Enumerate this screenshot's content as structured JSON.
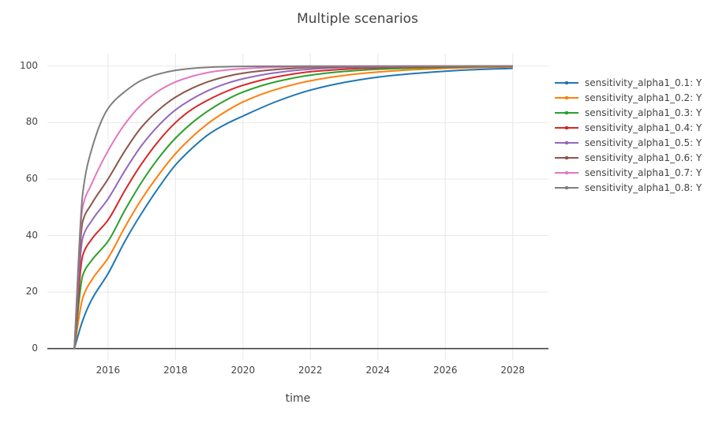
{
  "title": "Multiple scenarios",
  "x_axis": {
    "title": "time",
    "tick_labels": [
      "2016",
      "2018",
      "2020",
      "2022",
      "2024",
      "2026",
      "2028"
    ],
    "tick_values": [
      2016,
      2018,
      2020,
      2022,
      2024,
      2026,
      2028
    ]
  },
  "y_axis": {
    "tick_labels": [
      "0",
      "20",
      "40",
      "60",
      "80",
      "100"
    ],
    "tick_values": [
      0,
      20,
      40,
      60,
      80,
      100
    ]
  },
  "colors": {
    "grid": "#e8e8e8",
    "zero_line": "#444444",
    "text": "#444444",
    "background": "#ffffff"
  },
  "chart_data": {
    "type": "line",
    "title": "Multiple scenarios",
    "xlabel": "time",
    "ylabel": "",
    "xlim": [
      2014.2,
      2029.06
    ],
    "ylim": [
      -4,
      104.4
    ],
    "grid": true,
    "legend_position": "right",
    "x": [
      2015,
      2015.25,
      2015.5,
      2016,
      2016.5,
      2017,
      2017.5,
      2018,
      2018.5,
      2019,
      2019.5,
      2020,
      2021,
      2022,
      2023,
      2024,
      2025,
      2026,
      2027,
      2028
    ],
    "series": [
      {
        "name": "sensitivity_alpha1_0.1: Y",
        "color": "#1f77b4",
        "values": [
          0,
          10,
          17,
          26.5,
          38,
          48,
          57,
          65,
          71,
          76,
          79.5,
          82.3,
          87.5,
          91.5,
          94.2,
          96.1,
          97.3,
          98.2,
          98.8,
          99.2
        ]
      },
      {
        "name": "sensitivity_alpha1_0.2: Y",
        "color": "#ff7f0e",
        "values": [
          0,
          18,
          24,
          32,
          43,
          53,
          61.5,
          69,
          75,
          80,
          84,
          87.3,
          91.8,
          94.8,
          96.7,
          97.9,
          98.7,
          99.2,
          99.5,
          99.7
        ]
      },
      {
        "name": "sensitivity_alpha1_0.3: Y",
        "color": "#2ca02c",
        "values": [
          0,
          26,
          31,
          38,
          49,
          59,
          67.5,
          74.5,
          80,
          84.4,
          88,
          90.8,
          94.5,
          96.8,
          98.1,
          98.9,
          99.3,
          99.6,
          99.8,
          99.9
        ]
      },
      {
        "name": "sensitivity_alpha1_0.4: Y",
        "color": "#d62728",
        "values": [
          0,
          33,
          38.5,
          45.5,
          56,
          65.5,
          73.5,
          80,
          84.8,
          88.2,
          91,
          93.2,
          96.2,
          98,
          98.9,
          99.4,
          99.7,
          99.8,
          99.9,
          99.9
        ]
      },
      {
        "name": "sensitivity_alpha1_0.5: Y",
        "color": "#9467bd",
        "values": [
          0,
          39.3,
          45,
          53,
          63,
          72,
          79,
          84.5,
          88.4,
          91.5,
          93.8,
          95.5,
          97.7,
          98.9,
          99.5,
          99.7,
          99.85,
          99.9,
          99.95,
          99.98
        ]
      },
      {
        "name": "sensitivity_alpha1_0.6: Y",
        "color": "#8c564b",
        "values": [
          0,
          45.1,
          51,
          60,
          70,
          78.5,
          84.5,
          89,
          92.2,
          94.6,
          96.3,
          97.5,
          98.8,
          99.5,
          99.75,
          99.9,
          99.94,
          99.97,
          99.98,
          99.99
        ]
      },
      {
        "name": "sensitivity_alpha1_0.7: Y",
        "color": "#e377c2",
        "values": [
          0,
          50.3,
          58,
          70,
          79.5,
          86.5,
          91.2,
          94.4,
          96.4,
          97.8,
          98.6,
          99.1,
          99.6,
          99.85,
          99.94,
          99.97,
          99.99,
          99.99,
          100,
          100
        ]
      },
      {
        "name": "sensitivity_alpha1_0.8: Y",
        "color": "#7f7f7f",
        "values": [
          0,
          55.1,
          70,
          85,
          91,
          95,
          97.2,
          98.5,
          99.2,
          99.6,
          99.8,
          99.9,
          99.97,
          99.99,
          100,
          100,
          100,
          100,
          100,
          100
        ]
      }
    ]
  }
}
